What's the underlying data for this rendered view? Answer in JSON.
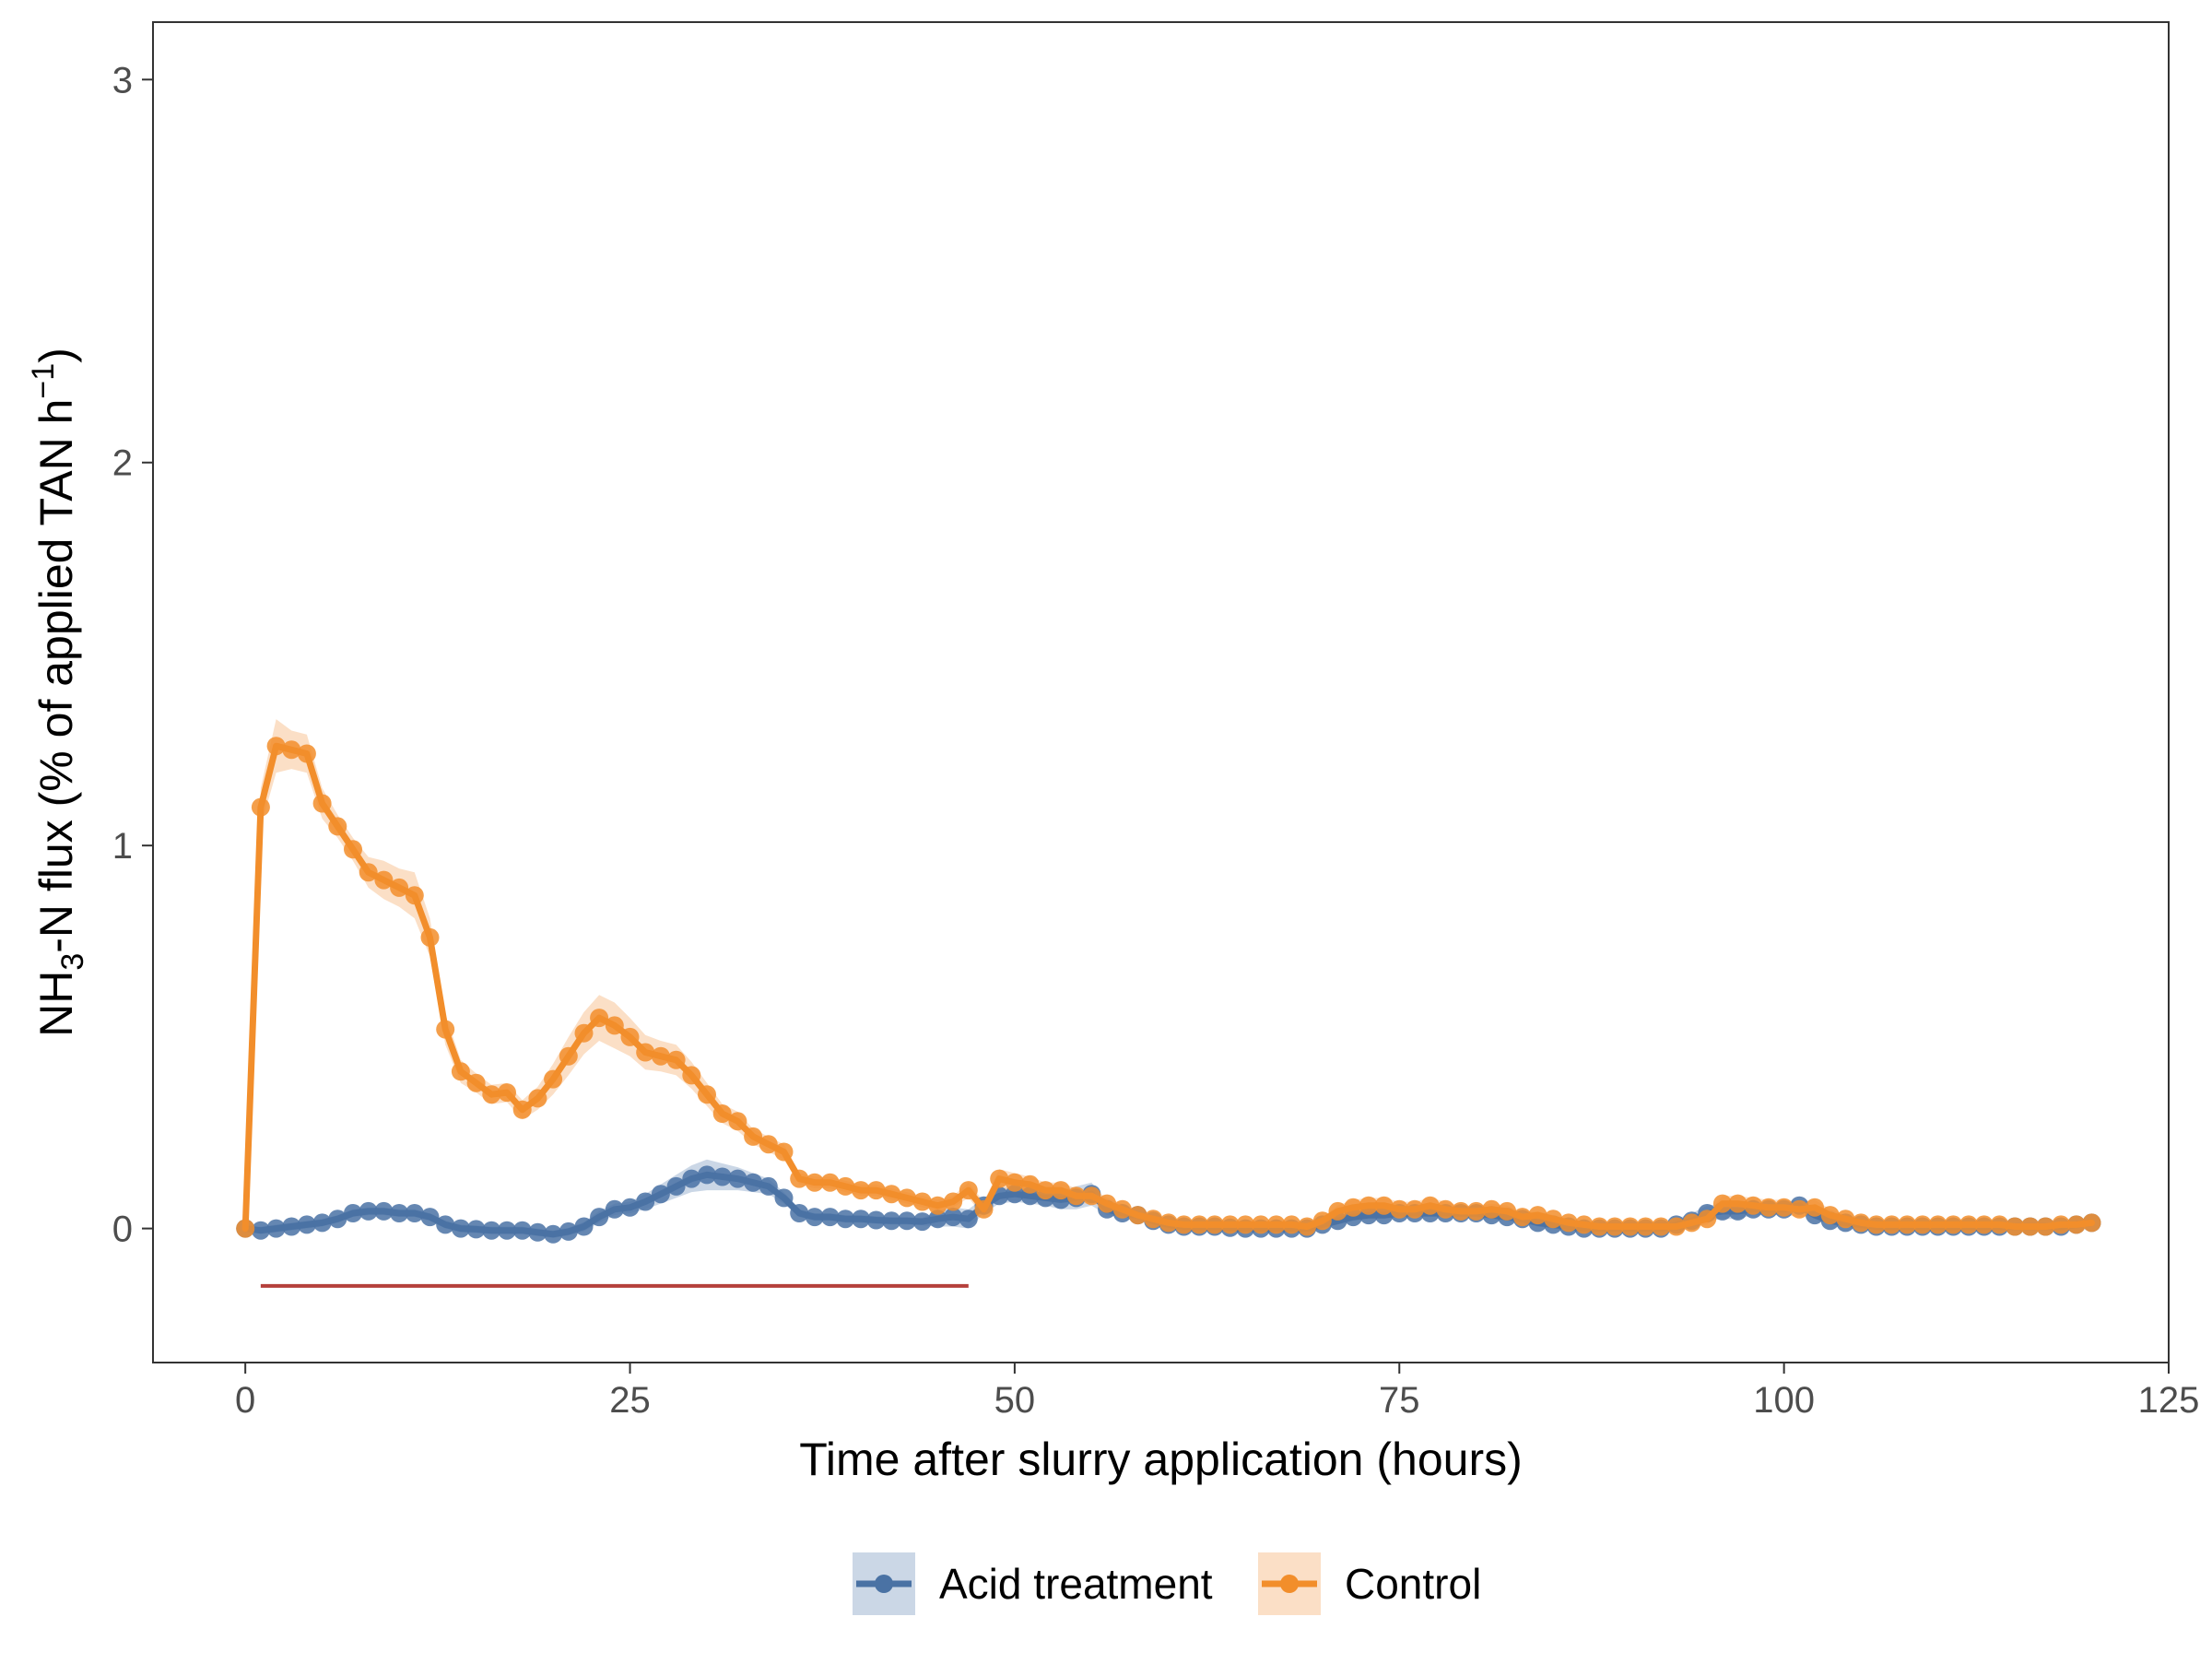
{
  "chart_data": {
    "type": "line",
    "xlabel": "Time after slurry application (hours)",
    "ylabel_parts": [
      "NH",
      "3",
      "-N flux (% of applied TAN h",
      "−1",
      ")"
    ],
    "xlim": [
      -6,
      125
    ],
    "ylim": [
      -0.35,
      3.15
    ],
    "x_ticks": [
      0,
      25,
      50,
      75,
      100,
      125
    ],
    "y_ticks": [
      0,
      1,
      2,
      3
    ],
    "grid": false,
    "legend_position": "bottom",
    "annotation_segment": {
      "x": [
        1,
        47
      ],
      "y": -0.15,
      "color": "#b5403b"
    },
    "series": [
      {
        "name": "Acid treatment",
        "color": "#4a72a4",
        "ribbon_color": "#a9bdd6",
        "x": [
          0,
          1,
          2,
          3,
          4,
          5,
          6,
          7,
          8,
          9,
          10,
          11,
          12,
          13,
          14,
          15,
          16,
          17,
          18,
          19,
          20,
          21,
          22,
          23,
          24,
          25,
          26,
          27,
          28,
          29,
          30,
          31,
          32,
          33,
          34,
          35,
          36,
          37,
          38,
          39,
          40,
          41,
          42,
          43,
          44,
          45,
          46,
          47,
          48,
          49,
          50,
          51,
          52,
          53,
          54,
          55,
          56,
          57,
          58,
          59,
          60,
          61,
          62,
          63,
          64,
          65,
          66,
          67,
          68,
          69,
          70,
          71,
          72,
          73,
          74,
          75,
          76,
          77,
          78,
          79,
          80,
          81,
          82,
          83,
          84,
          85,
          86,
          87,
          88,
          89,
          90,
          91,
          92,
          93,
          94,
          95,
          96,
          97,
          98,
          99,
          100,
          101,
          102,
          103,
          104,
          105,
          106,
          107,
          108,
          109,
          110,
          111,
          112,
          113,
          114,
          115,
          116,
          117,
          118,
          119,
          120
        ],
        "values": [
          0,
          -0.005,
          0,
          0.005,
          0.01,
          0.015,
          0.025,
          0.04,
          0.045,
          0.045,
          0.04,
          0.04,
          0.03,
          0.01,
          0,
          -0.002,
          -0.005,
          -0.005,
          -0.005,
          -0.01,
          -0.015,
          -0.008,
          0.005,
          0.03,
          0.05,
          0.055,
          0.07,
          0.09,
          0.11,
          0.13,
          0.14,
          0.135,
          0.13,
          0.12,
          0.11,
          0.08,
          0.04,
          0.03,
          0.03,
          0.025,
          0.025,
          0.022,
          0.02,
          0.02,
          0.018,
          0.025,
          0.03,
          0.025,
          0.06,
          0.085,
          0.09,
          0.085,
          0.08,
          0.075,
          0.08,
          0.09,
          0.05,
          0.04,
          0.035,
          0.02,
          0.01,
          0.005,
          0.005,
          0.005,
          0.002,
          0,
          0,
          0,
          0,
          0,
          0.01,
          0.02,
          0.03,
          0.035,
          0.035,
          0.04,
          0.04,
          0.04,
          0.04,
          0.04,
          0.04,
          0.035,
          0.03,
          0.025,
          0.015,
          0.01,
          0.005,
          0,
          0,
          0,
          0,
          0,
          0,
          0.01,
          0.02,
          0.04,
          0.045,
          0.045,
          0.05,
          0.05,
          0.05,
          0.06,
          0.035,
          0.02,
          0.015,
          0.01,
          0.005,
          0.005,
          0.005,
          0.005,
          0.005,
          0.005,
          0.005,
          0.005,
          0.005,
          0.005,
          0.005,
          0.005,
          0.005,
          0.01,
          0.015
        ],
        "band": [
          0,
          0.01,
          0.01,
          0.01,
          0.01,
          0.01,
          0.01,
          0.01,
          0.01,
          0.01,
          0.01,
          0.01,
          0.01,
          0.01,
          0.01,
          0.01,
          0.01,
          0.01,
          0.01,
          0.01,
          0.01,
          0.01,
          0.012,
          0.015,
          0.015,
          0.015,
          0.02,
          0.025,
          0.03,
          0.035,
          0.04,
          0.035,
          0.03,
          0.025,
          0.02,
          0.015,
          0.01,
          0.01,
          0.01,
          0.01,
          0.01,
          0.01,
          0.01,
          0.01,
          0.01,
          0.02,
          0.025,
          0.025,
          0.02,
          0.02,
          0.02,
          0.02,
          0.02,
          0.025,
          0.03,
          0.03,
          0.015,
          0.01,
          0.01,
          0.01,
          0.01,
          0.01,
          0.01,
          0.01,
          0.01,
          0.01,
          0.01,
          0.01,
          0.01,
          0.01,
          0.01,
          0.01,
          0.01,
          0.01,
          0.01,
          0.01,
          0.01,
          0.01,
          0.01,
          0.01,
          0.01,
          0.01,
          0.01,
          0.01,
          0.01,
          0.01,
          0.01,
          0.01,
          0.01,
          0.01,
          0.01,
          0.01,
          0.01,
          0.015,
          0.02,
          0.02,
          0.02,
          0.02,
          0.015,
          0.015,
          0.015,
          0.015,
          0.01,
          0.01,
          0.01,
          0.01,
          0.01,
          0.01,
          0.01,
          0.01,
          0.01,
          0.01,
          0.01,
          0.01,
          0.01,
          0.01,
          0.01,
          0.01,
          0.01,
          0.01,
          0.01
        ]
      },
      {
        "name": "Control",
        "color": "#f28e2b",
        "ribbon_color": "#f9c9a0",
        "x": [
          0,
          1,
          2,
          3,
          4,
          5,
          6,
          7,
          8,
          9,
          10,
          11,
          12,
          13,
          14,
          15,
          16,
          17,
          18,
          19,
          20,
          21,
          22,
          23,
          24,
          25,
          26,
          27,
          28,
          29,
          30,
          31,
          32,
          33,
          34,
          35,
          36,
          37,
          38,
          39,
          40,
          41,
          42,
          43,
          44,
          45,
          46,
          47,
          48,
          49,
          50,
          51,
          52,
          53,
          54,
          55,
          56,
          57,
          58,
          59,
          60,
          61,
          62,
          63,
          64,
          65,
          66,
          67,
          68,
          69,
          70,
          71,
          72,
          73,
          74,
          75,
          76,
          77,
          78,
          79,
          80,
          81,
          82,
          83,
          84,
          85,
          86,
          87,
          88,
          89,
          90,
          91,
          92,
          93,
          94,
          95,
          96,
          97,
          98,
          99,
          100,
          101,
          102,
          103,
          104,
          105,
          106,
          107,
          108,
          109,
          110,
          111,
          112,
          113,
          114,
          115,
          116,
          117,
          118,
          119,
          120
        ],
        "values": [
          0,
          1.1,
          1.26,
          1.25,
          1.24,
          1.11,
          1.05,
          0.99,
          0.93,
          0.91,
          0.89,
          0.87,
          0.76,
          0.52,
          0.41,
          0.38,
          0.35,
          0.355,
          0.31,
          0.34,
          0.39,
          0.45,
          0.51,
          0.55,
          0.53,
          0.5,
          0.46,
          0.45,
          0.44,
          0.4,
          0.35,
          0.3,
          0.28,
          0.24,
          0.22,
          0.2,
          0.13,
          0.12,
          0.12,
          0.11,
          0.1,
          0.1,
          0.09,
          0.08,
          0.07,
          0.06,
          0.07,
          0.1,
          0.05,
          0.13,
          0.12,
          0.115,
          0.1,
          0.1,
          0.085,
          0.085,
          0.065,
          0.05,
          0.035,
          0.025,
          0.015,
          0.01,
          0.01,
          0.01,
          0.01,
          0.01,
          0.01,
          0.01,
          0.01,
          0.005,
          0.02,
          0.045,
          0.055,
          0.06,
          0.06,
          0.05,
          0.05,
          0.06,
          0.05,
          0.045,
          0.045,
          0.05,
          0.045,
          0.03,
          0.035,
          0.025,
          0.015,
          0.01,
          0.005,
          0.005,
          0.005,
          0.005,
          0.005,
          0.005,
          0.015,
          0.025,
          0.065,
          0.065,
          0.06,
          0.055,
          0.055,
          0.05,
          0.055,
          0.035,
          0.025,
          0.015,
          0.01,
          0.01,
          0.01,
          0.01,
          0.01,
          0.01,
          0.01,
          0.01,
          0.01,
          0.005,
          0.005,
          0.005,
          0.01,
          0.01,
          0.015
        ],
        "band": [
          0,
          0.05,
          0.07,
          0.05,
          0.05,
          0.04,
          0.03,
          0.03,
          0.04,
          0.05,
          0.05,
          0.06,
          0.05,
          0.04,
          0.03,
          0.025,
          0.025,
          0.025,
          0.025,
          0.03,
          0.04,
          0.05,
          0.055,
          0.06,
          0.06,
          0.05,
          0.045,
          0.04,
          0.04,
          0.035,
          0.03,
          0.025,
          0.025,
          0.02,
          0.02,
          0.02,
          0.015,
          0.015,
          0.015,
          0.015,
          0.015,
          0.015,
          0.015,
          0.015,
          0.015,
          0.015,
          0.015,
          0.02,
          0.02,
          0.025,
          0.025,
          0.02,
          0.02,
          0.02,
          0.02,
          0.02,
          0.015,
          0.015,
          0.01,
          0.01,
          0.01,
          0.01,
          0.01,
          0.01,
          0.01,
          0.01,
          0.01,
          0.01,
          0.01,
          0.01,
          0.01,
          0.015,
          0.02,
          0.02,
          0.02,
          0.02,
          0.02,
          0.02,
          0.02,
          0.015,
          0.015,
          0.015,
          0.015,
          0.01,
          0.01,
          0.01,
          0.01,
          0.01,
          0.01,
          0.01,
          0.01,
          0.01,
          0.01,
          0.01,
          0.01,
          0.015,
          0.02,
          0.02,
          0.02,
          0.02,
          0.02,
          0.02,
          0.02,
          0.015,
          0.01,
          0.01,
          0.01,
          0.01,
          0.01,
          0.01,
          0.01,
          0.01,
          0.01,
          0.01,
          0.01,
          0.01,
          0.01,
          0.01,
          0.01,
          0.01,
          0.01
        ]
      }
    ]
  }
}
